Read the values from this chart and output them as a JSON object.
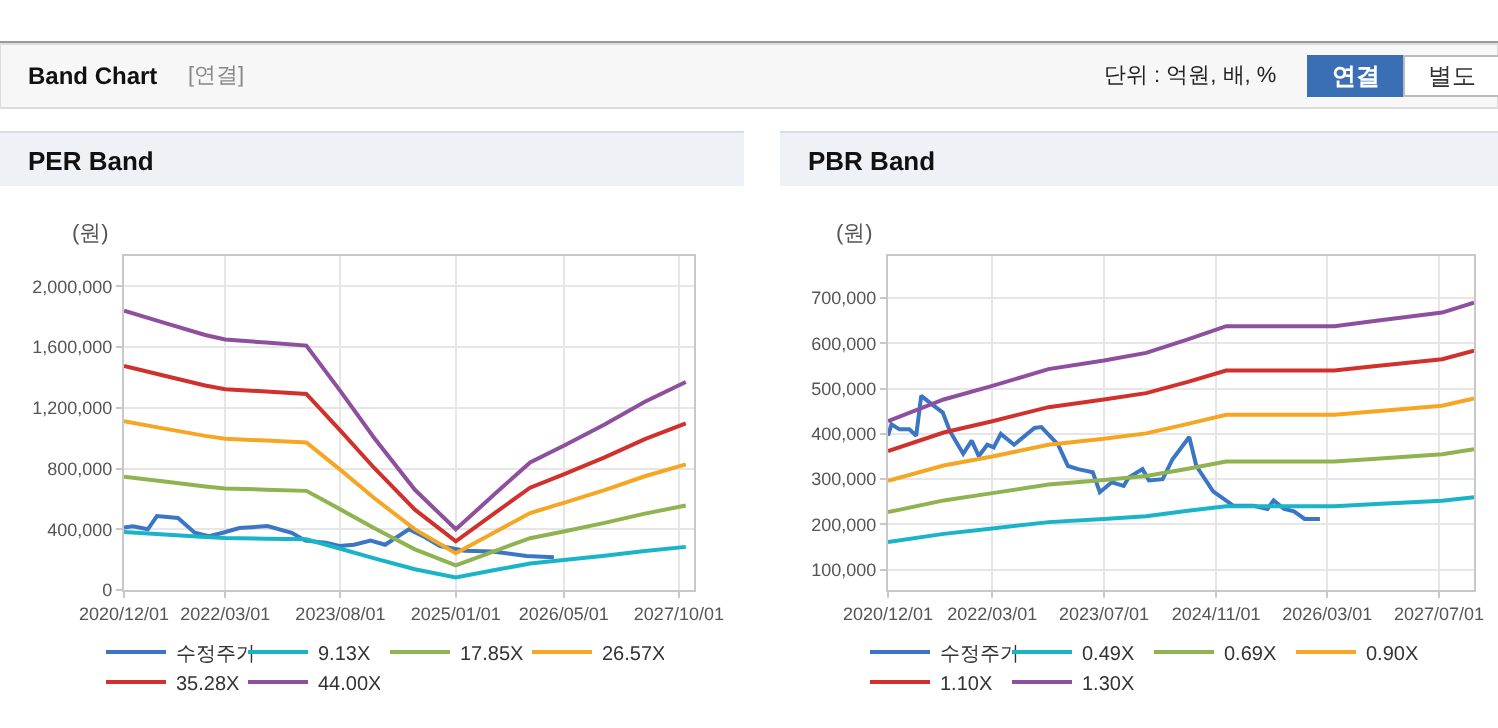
{
  "chart_data": [
    {
      "type": "line",
      "title": "PER Band",
      "ylabel": "(원)",
      "annotations": [
        "Band Chart",
        "[연결]",
        "단위 : 억원, 배, %",
        "연결",
        "별도"
      ],
      "xlim": [
        "2020-12-01",
        "2027-12-08"
      ],
      "ylim": [
        0,
        2200000
      ],
      "xticks": [
        {
          "value": "2020-12-01",
          "label": "2020/12/01"
        },
        {
          "value": "2022-03-01",
          "label": "2022/03/01"
        },
        {
          "value": "2023-08-01",
          "label": "2023/08/01"
        },
        {
          "value": "2025-01-01",
          "label": "2025/01/01"
        },
        {
          "value": "2026-05-01",
          "label": "2026/05/01"
        },
        {
          "value": "2027-10-01",
          "label": "2027/10/01"
        }
      ],
      "yticks": [
        0,
        {
          "value": 400000,
          "label": "400,000"
        },
        {
          "value": 800000,
          "label": "800,000"
        },
        {
          "value": 1200000,
          "label": "1,200,000"
        },
        {
          "value": 1600000,
          "label": "1,600,000"
        },
        {
          "value": 2000000,
          "label": "2,000,000"
        }
      ],
      "grid": true,
      "legend": "bottom",
      "marker": "none",
      "line_style": "solid",
      "series": [
        {
          "name": "수정주가",
          "color": "#3a76c4",
          "x": [
            "2020-12-01",
            "2021-01-10",
            "2021-03-18",
            "2021-04-28",
            "2021-08-01",
            "2021-10-15",
            "2021-12-18",
            "2022-02-18",
            "2022-05-04",
            "2022-09-07",
            "2022-12-25",
            "2023-02-25",
            "2023-05-28",
            "2023-07-28",
            "2023-10-01",
            "2023-12-15",
            "2024-02-18",
            "2024-06-04",
            "2024-08-06",
            "2024-10-22",
            "2025-02-10",
            "2025-06-13",
            "2025-11-15",
            "2026-03-18"
          ],
          "values": [
            412000,
            420000,
            400000,
            487000,
            474000,
            377000,
            355000,
            377000,
            408000,
            421000,
            377000,
            325000,
            311000,
            290000,
            298000,
            325000,
            298000,
            400000,
            355000,
            290000,
            259000,
            254000,
            224000,
            215000
          ]
        },
        {
          "name": "9.13X",
          "color": "#1ab4c8",
          "x": [
            "2020-12-01",
            "2021-06-01",
            "2021-12-01",
            "2022-03-01",
            "2022-09-01",
            "2023-03-01",
            "2023-08-01",
            "2024-01-01",
            "2024-07-01",
            "2025-01-01",
            "2025-07-01",
            "2025-12-01",
            "2026-05-01",
            "2026-11-01",
            "2027-05-01",
            "2027-11-01"
          ],
          "values": [
            382000,
            365000,
            349000,
            342000,
            338000,
            334000,
            272000,
            208000,
            137000,
            83000,
            133000,
            174000,
            197000,
            226000,
            257000,
            284000
          ]
        },
        {
          "name": "17.85X",
          "color": "#8fb350",
          "x": [
            "2020-12-01",
            "2021-06-01",
            "2021-12-01",
            "2022-03-01",
            "2022-09-01",
            "2023-03-01",
            "2023-08-01",
            "2024-01-01",
            "2024-07-01",
            "2025-01-01",
            "2025-07-01",
            "2025-12-01",
            "2026-05-01",
            "2026-11-01",
            "2027-05-01",
            "2027-11-01"
          ],
          "values": [
            746000,
            714000,
            682000,
            669000,
            661000,
            653000,
            531000,
            406000,
            268000,
            162000,
            260000,
            341000,
            385000,
            442000,
            503000,
            556000
          ]
        },
        {
          "name": "26.57X",
          "color": "#f5a623",
          "x": [
            "2020-12-01",
            "2021-06-01",
            "2021-12-01",
            "2022-03-01",
            "2022-09-01",
            "2023-03-01",
            "2023-08-01",
            "2024-01-01",
            "2024-07-01",
            "2025-01-01",
            "2025-07-01",
            "2025-12-01",
            "2026-05-01",
            "2026-11-01",
            "2027-05-01",
            "2027-11-01"
          ],
          "values": [
            1111000,
            1063000,
            1015000,
            996000,
            984000,
            972000,
            791000,
            604000,
            399000,
            242000,
            386000,
            507000,
            574000,
            658000,
            749000,
            827000
          ]
        },
        {
          "name": "35.28X",
          "color": "#d0312d",
          "x": [
            "2020-12-01",
            "2021-06-01",
            "2021-12-01",
            "2022-03-01",
            "2022-09-01",
            "2023-03-01",
            "2023-08-01",
            "2024-01-01",
            "2024-07-01",
            "2025-01-01",
            "2025-07-01",
            "2025-12-01",
            "2026-05-01",
            "2026-11-01",
            "2027-05-01",
            "2027-11-01"
          ],
          "values": [
            1475000,
            1411000,
            1347000,
            1323000,
            1307000,
            1291000,
            1050000,
            802000,
            529000,
            321000,
            513000,
            674000,
            762000,
            874000,
            994000,
            1098000
          ]
        },
        {
          "name": "44.00X",
          "color": "#8e4f9e",
          "x": [
            "2020-12-01",
            "2021-06-01",
            "2021-12-01",
            "2022-03-01",
            "2022-09-01",
            "2023-03-01",
            "2023-08-01",
            "2024-01-01",
            "2024-07-01",
            "2025-01-01",
            "2025-07-01",
            "2025-12-01",
            "2026-05-01",
            "2026-11-01",
            "2027-05-01",
            "2027-11-01"
          ],
          "values": [
            1840000,
            1760000,
            1680000,
            1650000,
            1630000,
            1610000,
            1310000,
            1000000,
            660000,
            400000,
            640000,
            840000,
            950000,
            1090000,
            1240000,
            1370000
          ]
        }
      ]
    },
    {
      "type": "line",
      "title": "PBR Band",
      "ylabel": "(원)",
      "xlim": [
        "2020-12-01",
        "2027-12-01"
      ],
      "ylim": [
        55000,
        793000
      ],
      "xticks": [
        {
          "value": "2020-12-01",
          "label": "2020/12/01"
        },
        {
          "value": "2022-03-01",
          "label": "2022/03/01"
        },
        {
          "value": "2023-07-01",
          "label": "2023/07/01"
        },
        {
          "value": "2024-11-01",
          "label": "2024/11/01"
        },
        {
          "value": "2026-03-01",
          "label": "2026/03/01"
        },
        {
          "value": "2027-07-01",
          "label": "2027/07/01"
        }
      ],
      "yticks": [
        {
          "value": 100000,
          "label": "100,000"
        },
        {
          "value": 200000,
          "label": "200,000"
        },
        {
          "value": 300000,
          "label": "300,000"
        },
        {
          "value": 400000,
          "label": "400,000"
        },
        {
          "value": 500000,
          "label": "500,000"
        },
        {
          "value": 600000,
          "label": "600,000"
        },
        {
          "value": 700000,
          "label": "700,000"
        }
      ],
      "grid": true,
      "legend": "bottom",
      "marker": "none",
      "line_style": "solid",
      "series": [
        {
          "name": "수정주가",
          "color": "#3a76c4",
          "x": [
            "2020-12-01",
            "2020-12-16",
            "2021-01-20",
            "2021-03-04",
            "2021-04-03",
            "2021-04-25",
            "2021-06-01",
            "2021-07-28",
            "2021-08-28",
            "2021-10-25",
            "2021-12-01",
            "2022-01-01",
            "2022-02-07",
            "2022-03-07",
            "2022-04-07",
            "2022-06-04",
            "2022-09-01",
            "2022-10-01",
            "2022-12-13",
            "2023-01-25",
            "2023-03-10",
            "2023-05-13",
            "2023-06-13",
            "2023-08-04",
            "2023-09-25",
            "2023-10-16",
            "2023-12-16",
            "2024-01-13",
            "2024-03-13",
            "2024-04-25",
            "2024-07-07",
            "2024-08-07",
            "2024-10-19",
            "2025-01-16",
            "2025-04-13",
            "2025-06-13",
            "2025-07-10",
            "2025-08-25",
            "2025-10-07",
            "2025-11-22",
            "2026-01-28"
          ],
          "values": [
            396000,
            421000,
            410000,
            410000,
            396000,
            484000,
            469000,
            447000,
            406000,
            356000,
            385000,
            351000,
            376000,
            370000,
            400000,
            376000,
            413000,
            415000,
            376000,
            329000,
            322000,
            315000,
            271000,
            293000,
            285000,
            303000,
            322000,
            297000,
            300000,
            344000,
            393000,
            329000,
            273000,
            241000,
            241000,
            234000,
            253000,
            234000,
            229000,
            212000,
            212000
          ]
        },
        {
          "name": "0.49X",
          "color": "#1ab4c8",
          "x": [
            "2020-12-01",
            "2021-08-01",
            "2022-03-01",
            "2022-11-01",
            "2023-07-01",
            "2024-01-01",
            "2024-07-01",
            "2024-12-15",
            "2026-04-01",
            "2026-10-01",
            "2027-07-15",
            "2027-12-01"
          ],
          "values": [
            161000,
            179000,
            191000,
            205000,
            212000,
            218000,
            230000,
            240000,
            240000,
            245000,
            252000,
            260000
          ]
        },
        {
          "name": "0.69X",
          "color": "#8fb350",
          "x": [
            "2020-12-01",
            "2021-08-01",
            "2022-03-01",
            "2022-11-01",
            "2023-07-01",
            "2024-01-01",
            "2024-07-01",
            "2024-12-15",
            "2026-04-01",
            "2026-10-01",
            "2027-07-15",
            "2027-12-01"
          ],
          "values": [
            227000,
            253000,
            269000,
            288000,
            298000,
            307000,
            323000,
            339000,
            339000,
            345000,
            355000,
            366000
          ]
        },
        {
          "name": "0.90X",
          "color": "#f5a623",
          "x": [
            "2020-12-01",
            "2021-08-01",
            "2022-03-01",
            "2022-11-01",
            "2023-07-01",
            "2024-01-01",
            "2024-07-01",
            "2024-12-15",
            "2026-04-01",
            "2026-10-01",
            "2027-07-15",
            "2027-12-01"
          ],
          "values": [
            296000,
            330000,
            350000,
            376000,
            389000,
            401000,
            422000,
            442000,
            442000,
            450000,
            462000,
            478000
          ]
        },
        {
          "name": "1.10X",
          "color": "#d0312d",
          "x": [
            "2020-12-01",
            "2021-08-01",
            "2022-03-01",
            "2022-11-01",
            "2023-07-01",
            "2024-01-01",
            "2024-07-01",
            "2024-12-15",
            "2026-04-01",
            "2026-10-01",
            "2027-07-15",
            "2027-12-01"
          ],
          "values": [
            362000,
            403000,
            428000,
            459000,
            476000,
            490000,
            515000,
            540000,
            540000,
            550000,
            565000,
            584000
          ]
        },
        {
          "name": "1.30X",
          "color": "#8e4f9e",
          "x": [
            "2020-12-01",
            "2021-08-01",
            "2022-03-01",
            "2022-11-01",
            "2023-07-01",
            "2024-01-01",
            "2024-07-01",
            "2024-12-15",
            "2026-04-01",
            "2026-10-01",
            "2027-07-15",
            "2027-12-01"
          ],
          "values": [
            428000,
            476000,
            506000,
            543000,
            562000,
            579000,
            609000,
            638000,
            638000,
            650000,
            668000,
            690000
          ]
        }
      ]
    }
  ]
}
